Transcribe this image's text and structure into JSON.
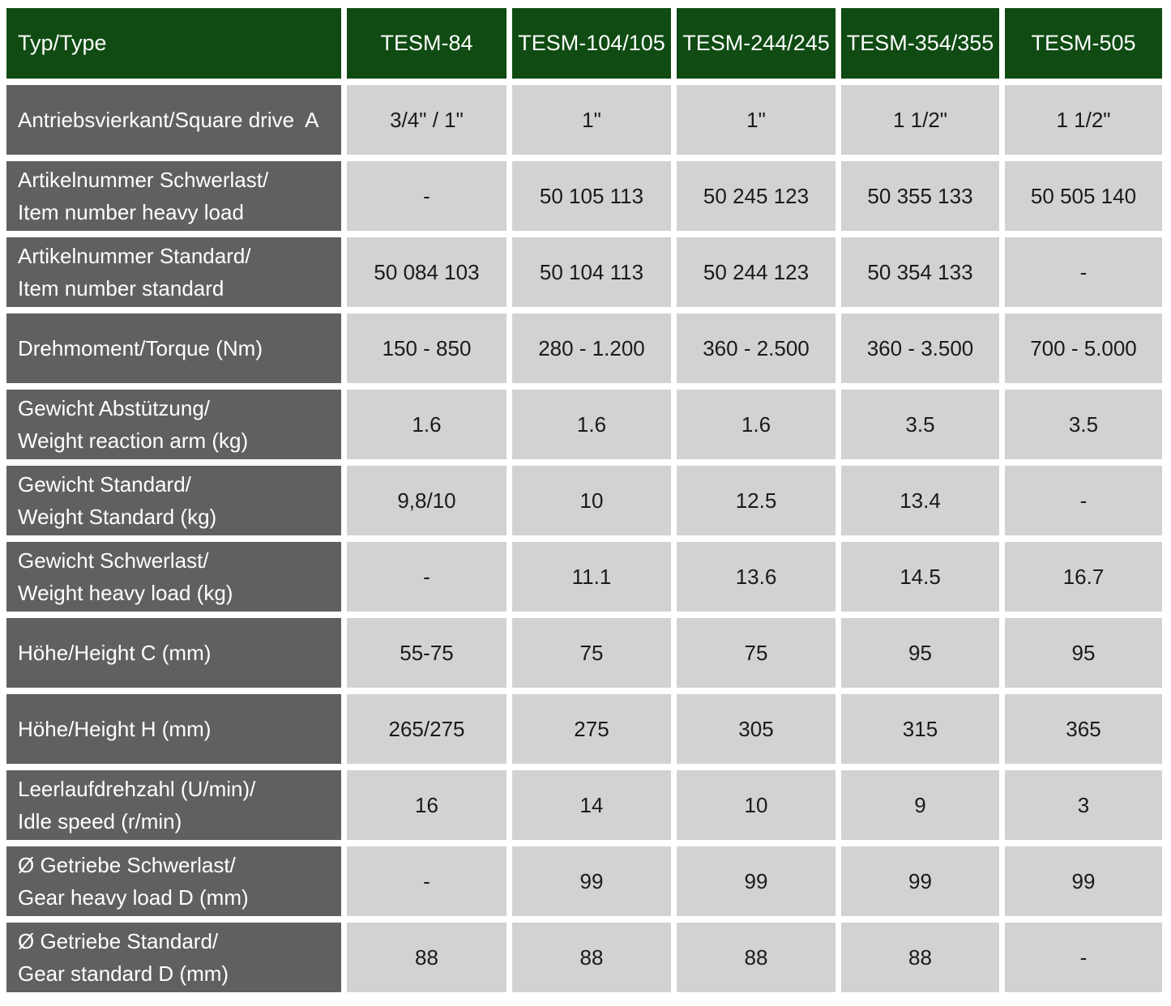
{
  "colors": {
    "header_bg": "#0F4B12",
    "label_bg": "#606060",
    "cell_bg": "#D2D2D2",
    "header_text": "#ffffff",
    "label_text": "#ffffff",
    "cell_text": "#1a1a1a",
    "page_bg": "#ffffff"
  },
  "table": {
    "header": {
      "label": "Typ/Type",
      "columns": [
        "TESM-84",
        "TESM-104/105",
        "TESM-244/245",
        "TESM-354/355",
        "TESM-505"
      ]
    },
    "rows": [
      {
        "label": "Antriebsvierkant/Square drive  A",
        "values": [
          "3/4\" / 1\"",
          "1\"",
          "1\"",
          "1 1/2\"",
          "1 1/2\""
        ]
      },
      {
        "label": "Artikelnummer Schwerlast/\nItem number heavy load",
        "values": [
          "-",
          "50 105 113",
          "50 245 123",
          "50 355 133",
          "50 505 140"
        ]
      },
      {
        "label": "Artikelnummer Standard/\nItem number standard",
        "values": [
          "50 084 103",
          "50 104 113",
          "50 244 123",
          "50 354 133",
          "-"
        ]
      },
      {
        "label": "Drehmoment/Torque (Nm)",
        "values": [
          "150 - 850",
          "280 - 1.200",
          "360 - 2.500",
          "360 - 3.500",
          "700 - 5.000"
        ]
      },
      {
        "label": "Gewicht Abstützung/\nWeight reaction arm (kg)",
        "values": [
          "1.6",
          "1.6",
          "1.6",
          "3.5",
          "3.5"
        ]
      },
      {
        "label": "Gewicht Standard/\nWeight Standard (kg)",
        "values": [
          "9,8/10",
          "10",
          "12.5",
          "13.4",
          "-"
        ]
      },
      {
        "label": "Gewicht Schwerlast/\nWeight heavy load (kg)",
        "values": [
          "-",
          "11.1",
          "13.6",
          "14.5",
          "16.7"
        ]
      },
      {
        "label": "Höhe/Height C (mm)",
        "values": [
          "55-75",
          "75",
          "75",
          "95",
          "95"
        ]
      },
      {
        "label": "Höhe/Height H (mm)",
        "values": [
          "265/275",
          "275",
          "305",
          "315",
          "365"
        ]
      },
      {
        "label": "Leerlaufdrehzahl (U/min)/\nIdle speed (r/min)",
        "values": [
          "16",
          "14",
          "10",
          "9",
          "3"
        ]
      },
      {
        "label": "Ø Getriebe Schwerlast/\nGear heavy load D (mm)",
        "values": [
          "-",
          "99",
          "99",
          "99",
          "99"
        ]
      },
      {
        "label": "Ø Getriebe Standard/\nGear standard D (mm)",
        "values": [
          "88",
          "88",
          "88",
          "88",
          "-"
        ]
      }
    ]
  }
}
